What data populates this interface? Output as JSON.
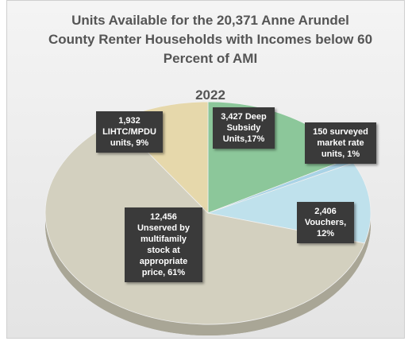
{
  "chart_data": {
    "type": "pie",
    "title": "Units Available for the 20,371 Anne Arundel County Renter Households with Incomes below 60 Percent of AMI",
    "subtitle": "2022",
    "values": [
      3427,
      150,
      2406,
      12456,
      1932
    ],
    "value_labels": [
      "3,427 Deep Subsidy Units,17%",
      "150 surveyed market rate units, 1%",
      "2,406 Vouchers, 12%",
      "12,456 Unserved by multifamily stock at appropriate price, 61%",
      "1,932 LIHTC/MPDU units, 9%"
    ],
    "colors": [
      "#8cc79a",
      "#a9d3e6",
      "#bfe1ec",
      "#d3d0bf",
      "#e6d8ab"
    ]
  }
}
